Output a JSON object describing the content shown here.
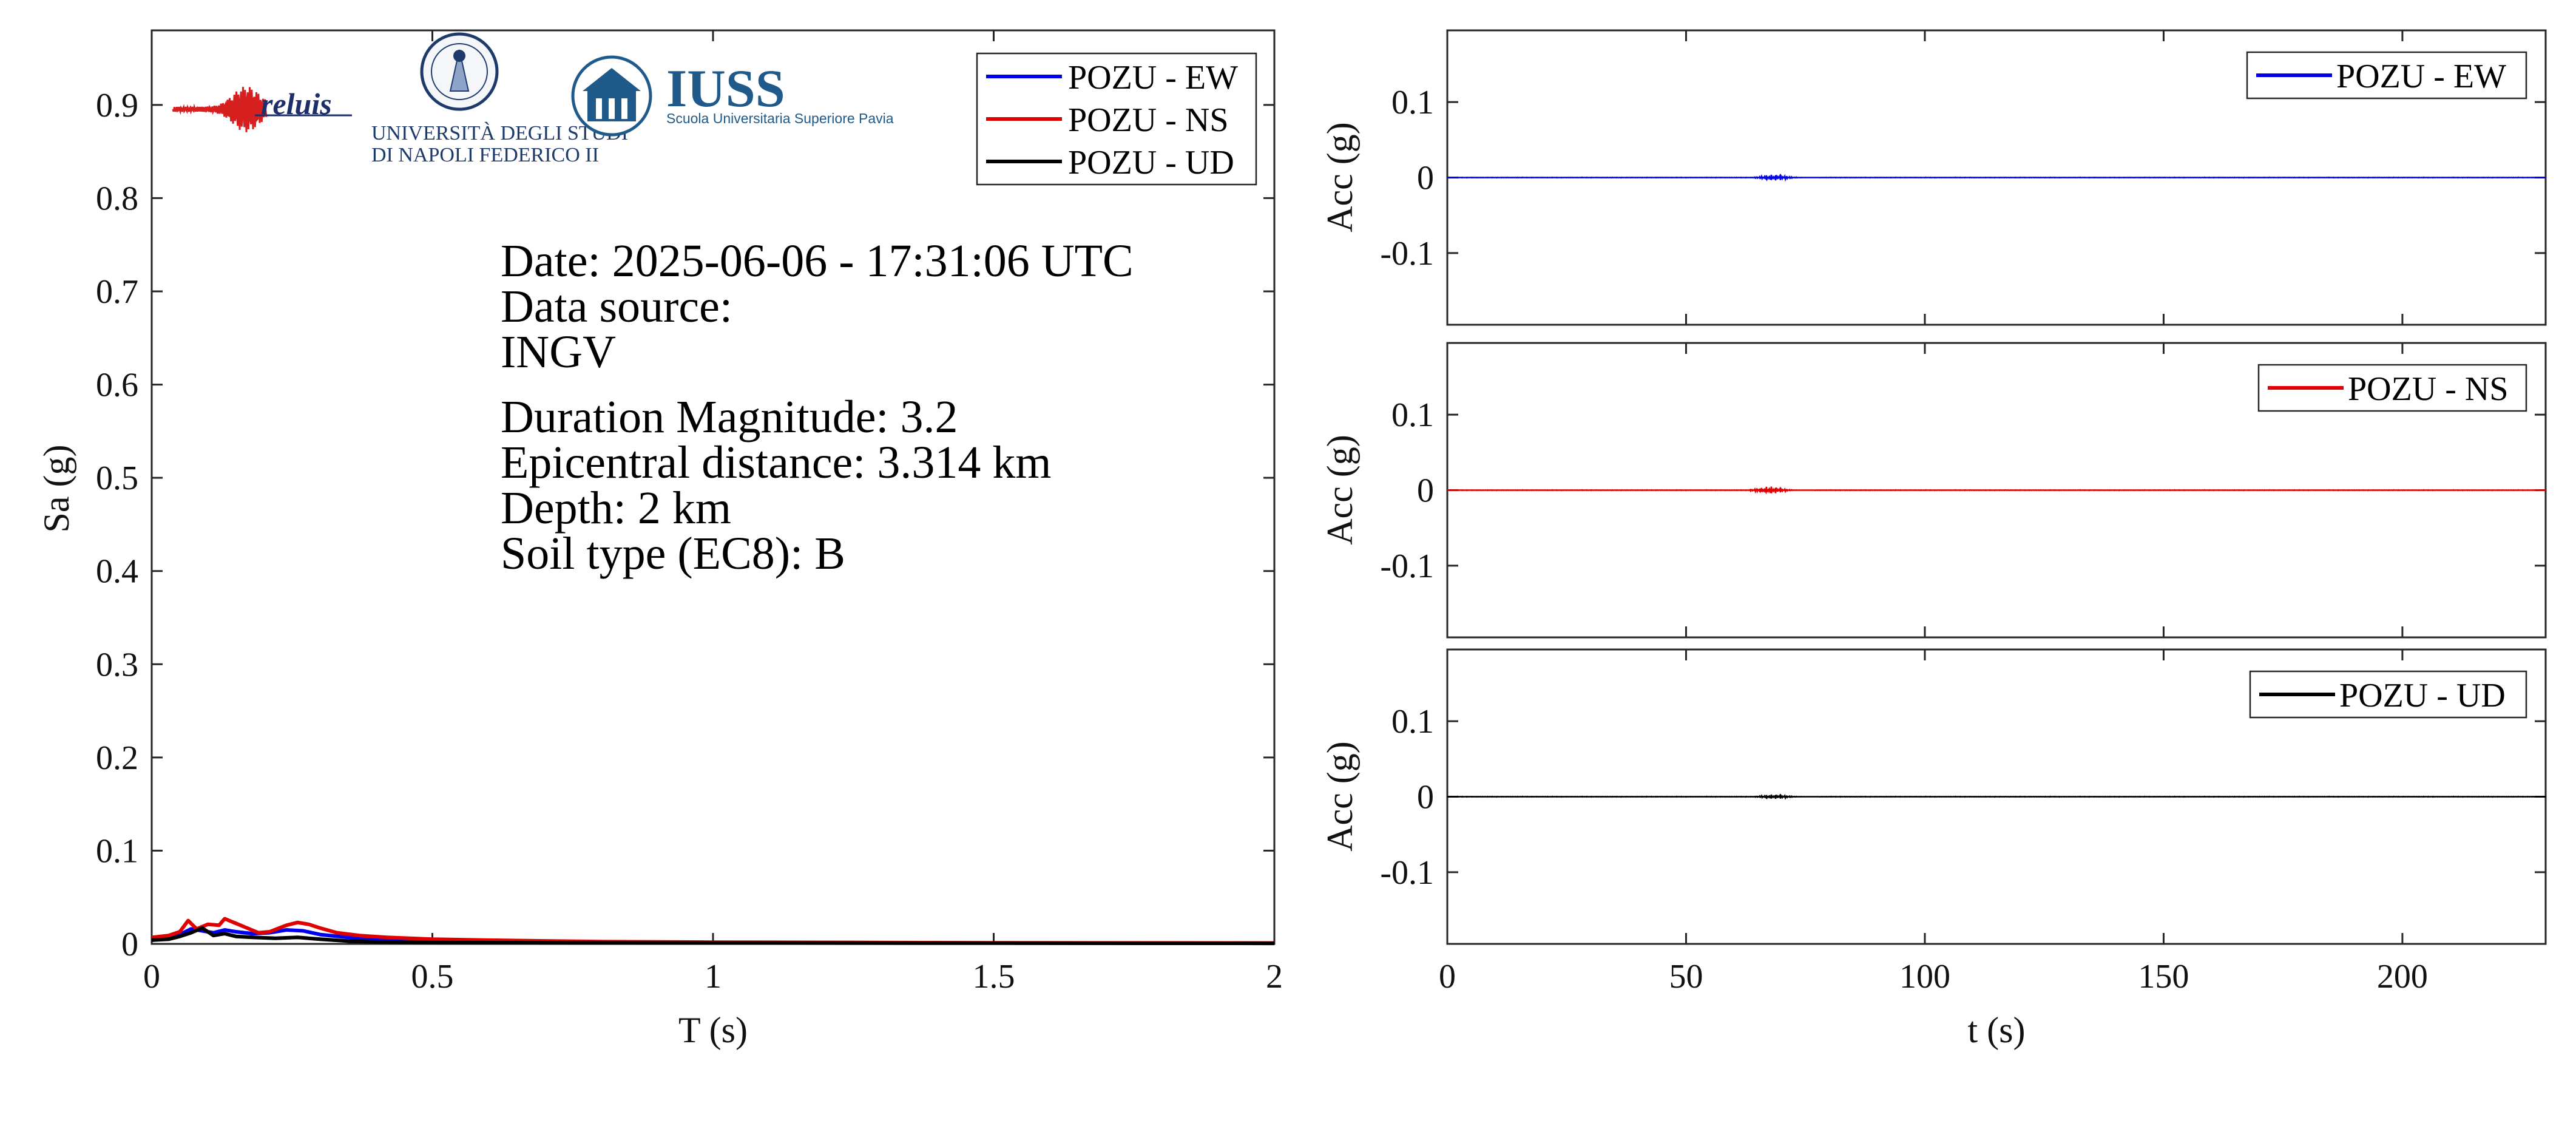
{
  "logos": {
    "reluis": "reluis",
    "unina_line1": "UNIVERSITÀ DEGLI STUDI",
    "unina_line2": "DI NAPOLI FEDERICO II",
    "iuss": "IUSS",
    "iuss_sub": "Scuola Universitaria Superiore Pavia"
  },
  "info": {
    "date": "Date: 2025-06-06 - 17:31:06 UTC",
    "source_label": "Data source:",
    "source": "INGV",
    "magnitude": "Duration Magnitude: 3.2",
    "distance": "Epicentral distance: 3.314 km",
    "depth": "Depth: 2 km",
    "soil": "Soil type (EC8): B"
  },
  "colors": {
    "ew": "#0000ee",
    "ns": "#e00000",
    "ud": "#000000"
  },
  "chart_data": [
    {
      "type": "line",
      "id": "spectrum",
      "xlabel": "T (s)",
      "ylabel": "Sa (g)",
      "xlim": [
        0,
        2
      ],
      "ylim": [
        0,
        0.98
      ],
      "xticks": [
        0,
        0.5,
        1,
        1.5,
        2
      ],
      "xtick_labels": [
        "0",
        "0.5",
        "1",
        "1.5",
        "2"
      ],
      "yticks": [
        0,
        0.1,
        0.2,
        0.3,
        0.4,
        0.5,
        0.6,
        0.7,
        0.8,
        0.9
      ],
      "ytick_labels": [
        "0",
        "0.1",
        "0.2",
        "0.3",
        "0.4",
        "0.5",
        "0.6",
        "0.7",
        "0.8",
        "0.9"
      ],
      "legend_position": "top-right",
      "grid": false,
      "series": [
        {
          "name": "POZU - EW",
          "color": "#0000ee",
          "x": [
            0,
            0.03,
            0.05,
            0.07,
            0.09,
            0.11,
            0.13,
            0.15,
            0.18,
            0.21,
            0.24,
            0.27,
            0.3,
            0.35,
            0.4,
            0.5,
            0.6,
            0.8,
            1.0,
            1.5,
            2.0
          ],
          "y": [
            0.006,
            0.007,
            0.01,
            0.016,
            0.014,
            0.012,
            0.015,
            0.013,
            0.011,
            0.012,
            0.015,
            0.014,
            0.01,
            0.007,
            0.005,
            0.004,
            0.003,
            0.002,
            0.0015,
            0.001,
            0.0008
          ]
        },
        {
          "name": "POZU - NS",
          "color": "#e00000",
          "x": [
            0,
            0.03,
            0.05,
            0.065,
            0.08,
            0.1,
            0.12,
            0.13,
            0.15,
            0.17,
            0.19,
            0.21,
            0.24,
            0.26,
            0.28,
            0.3,
            0.33,
            0.37,
            0.42,
            0.5,
            0.6,
            0.8,
            1.0,
            1.5,
            2.0
          ],
          "y": [
            0.007,
            0.009,
            0.013,
            0.025,
            0.016,
            0.021,
            0.02,
            0.027,
            0.022,
            0.017,
            0.012,
            0.013,
            0.02,
            0.023,
            0.021,
            0.017,
            0.012,
            0.009,
            0.007,
            0.005,
            0.004,
            0.0025,
            0.0018,
            0.0012,
            0.0009
          ]
        },
        {
          "name": "POZU - UD",
          "color": "#000000",
          "x": [
            0,
            0.03,
            0.05,
            0.07,
            0.09,
            0.11,
            0.13,
            0.15,
            0.18,
            0.22,
            0.26,
            0.3,
            0.35,
            0.4,
            0.5,
            0.7,
            1.0,
            1.5,
            2.0
          ],
          "y": [
            0.004,
            0.005,
            0.008,
            0.012,
            0.017,
            0.009,
            0.011,
            0.008,
            0.007,
            0.006,
            0.007,
            0.005,
            0.003,
            0.002,
            0.0015,
            0.0012,
            0.001,
            0.0008,
            0.0006
          ]
        }
      ]
    },
    {
      "type": "line",
      "id": "acc-ew",
      "xlabel": "",
      "ylabel": "Acc (g)",
      "xlim": [
        0,
        230
      ],
      "ylim": [
        -0.195,
        0.195
      ],
      "yticks": [
        -0.1,
        0,
        0.1
      ],
      "ytick_labels": [
        "-0.1",
        "0",
        "0.1"
      ],
      "legend_position": "top-right",
      "series": [
        {
          "name": "POZU - EW",
          "color": "#0000ee",
          "t_start": 0,
          "t_end": 230,
          "burst_center": 68,
          "burst_peak": 0.004
        }
      ]
    },
    {
      "type": "line",
      "id": "acc-ns",
      "xlabel": "",
      "ylabel": "Acc (g)",
      "xlim": [
        0,
        230
      ],
      "ylim": [
        -0.195,
        0.195
      ],
      "yticks": [
        -0.1,
        0,
        0.1
      ],
      "ytick_labels": [
        "-0.1",
        "0",
        "0.1"
      ],
      "legend_position": "top-right",
      "series": [
        {
          "name": "POZU - NS",
          "color": "#e00000",
          "t_start": 0,
          "t_end": 230,
          "burst_center": 67,
          "burst_peak": 0.005
        }
      ]
    },
    {
      "type": "line",
      "id": "acc-ud",
      "xlabel": "t (s)",
      "ylabel": "Acc (g)",
      "xlim": [
        0,
        230
      ],
      "ylim": [
        -0.195,
        0.195
      ],
      "xticks": [
        0,
        50,
        100,
        150,
        200
      ],
      "xtick_labels": [
        "0",
        "50",
        "100",
        "150",
        "200"
      ],
      "yticks": [
        -0.1,
        0,
        0.1
      ],
      "ytick_labels": [
        "-0.1",
        "0",
        "0.1"
      ],
      "legend_position": "top-right",
      "series": [
        {
          "name": "POZU - UD",
          "color": "#000000",
          "t_start": 0,
          "t_end": 230,
          "burst_center": 68,
          "burst_peak": 0.003
        }
      ]
    }
  ]
}
